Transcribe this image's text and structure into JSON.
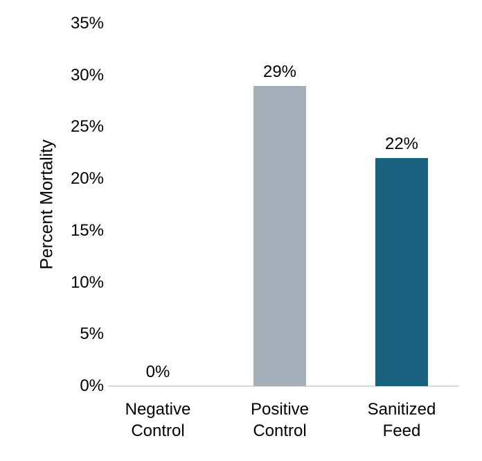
{
  "chart_data": {
    "type": "bar",
    "title": "",
    "ylabel": "Percent Mortality",
    "xlabel": "",
    "categories": [
      "Negative Control",
      "Positive Control",
      "Sanitized Feed"
    ],
    "values": [
      0,
      29,
      22
    ],
    "value_labels": [
      "0%",
      "29%",
      "22%"
    ],
    "bar_colors": [
      null,
      "#a4afba",
      "#1a607f"
    ],
    "ylim": [
      0,
      35
    ],
    "yticks": [
      {
        "value": 0,
        "label": "0%"
      },
      {
        "value": 5,
        "label": "5%"
      },
      {
        "value": 10,
        "label": "10%"
      },
      {
        "value": 15,
        "label": "15%"
      },
      {
        "value": 20,
        "label": "20%"
      },
      {
        "value": 25,
        "label": "25%"
      },
      {
        "value": 30,
        "label": "30%"
      },
      {
        "value": 35,
        "label": "35%"
      }
    ],
    "grid": false,
    "legend": false,
    "axis_line_color": "#d9d9d9",
    "text_color": "#000000",
    "background_color": "#ffffff"
  }
}
